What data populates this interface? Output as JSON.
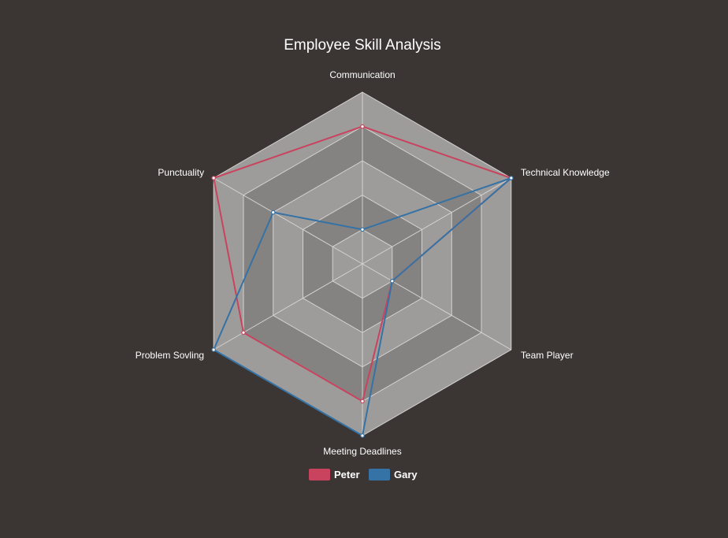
{
  "chart_data": {
    "type": "radar",
    "title": "Employee Skill Analysis",
    "axes": [
      "Communication",
      "Technical Knowledge",
      "Team Player",
      "Meeting Deadlines",
      "Problem Sovling",
      "Punctuality"
    ],
    "range": [
      0,
      5
    ],
    "ring_count": 5,
    "series": [
      {
        "name": "Peter",
        "values": [
          4,
          5,
          1,
          4,
          4,
          5
        ],
        "color": "#c9435e"
      },
      {
        "name": "Gary",
        "values": [
          1,
          5,
          1,
          5,
          5,
          3
        ],
        "color": "#3572a5"
      }
    ],
    "legend": "bottom",
    "colors": {
      "background": "#3b3634",
      "ring_light": "#9e9c9b",
      "ring_dark": "#858381",
      "grid": "#d4d2d0",
      "text": "#ffffff"
    }
  }
}
